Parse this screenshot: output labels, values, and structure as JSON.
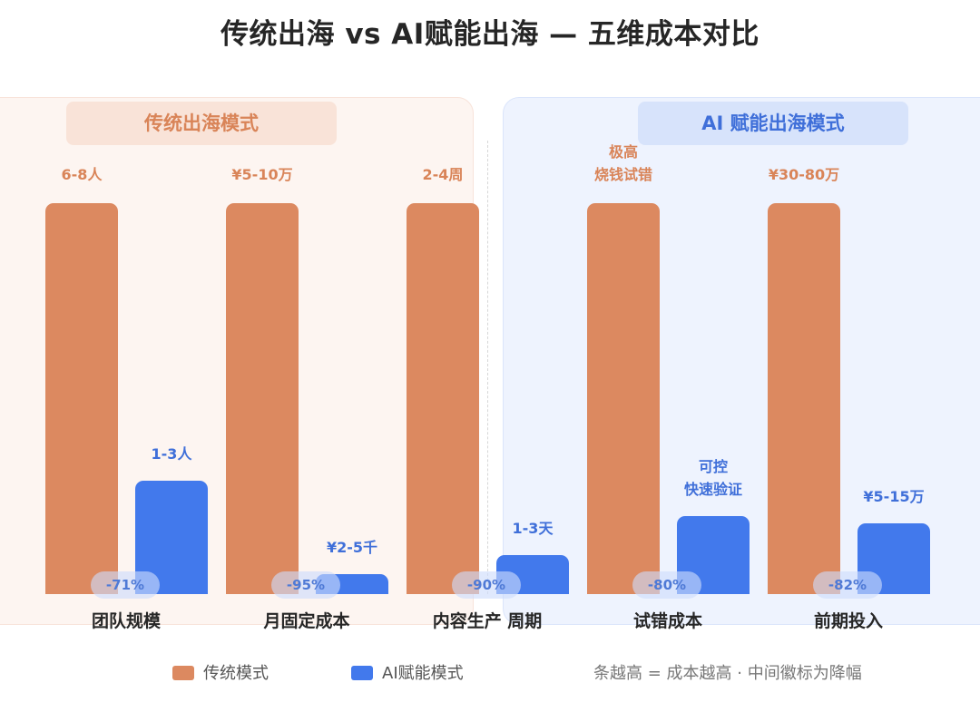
{
  "title": "传统出海 vs AI赋能出海 — 五维成本对比",
  "panels": {
    "traditional_label": "传统出海模式",
    "ai_label": "AI 赋能出海模式"
  },
  "colors": {
    "traditional": "#dc8960",
    "ai": "#4279ec"
  },
  "chart_data": {
    "type": "bar",
    "categories": [
      "团队规模",
      "月固定成本",
      "内容生产 周期",
      "试错成本",
      "前期投入"
    ],
    "series": [
      {
        "name": "传统模式",
        "relative_values": [
          1.0,
          1.0,
          1.0,
          1.0,
          1.0
        ],
        "labels": [
          [
            "6-8人"
          ],
          [
            "¥5-10万"
          ],
          [
            "2-4周"
          ],
          [
            "极高",
            "烧钱试错"
          ],
          [
            "¥30-80万"
          ]
        ]
      },
      {
        "name": "AI赋能模式",
        "relative_values": [
          0.29,
          0.05,
          0.1,
          0.2,
          0.18
        ],
        "labels": [
          [
            "1-3人"
          ],
          [
            "¥2-5千"
          ],
          [
            "1-3天"
          ],
          [
            "可控",
            "快速验证"
          ],
          [
            "¥5-15万"
          ]
        ]
      }
    ],
    "reductions": [
      "-71%",
      "-95%",
      "-90%",
      "-80%",
      "-82%"
    ],
    "legend": [
      "传统模式",
      "AI赋能模式"
    ],
    "note": "条越高 = 成本越高 · 中间徽标为降幅"
  }
}
